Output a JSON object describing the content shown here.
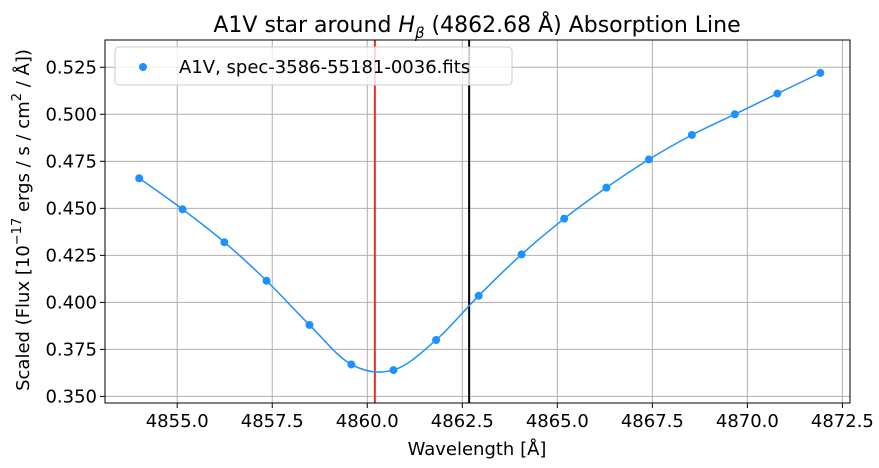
{
  "chart_data": {
    "type": "line",
    "title_text": "A1V star around ",
    "title_symbol": "H",
    "title_symbol_sub": "β",
    "title_rest": " (4862.68 Å) Absorption Line",
    "xlabel": "Wavelength [Å]",
    "ylabel_prefix": "Scaled (Flux [10",
    "ylabel_exp": "−17",
    "ylabel_mid": " ergs / s / cm",
    "ylabel_exp2": "2",
    "ylabel_suffix": " / Å])",
    "xlim": [
      4853.1,
      4872.7
    ],
    "ylim": [
      0.3465,
      0.5395
    ],
    "x_ticks": [
      4855.0,
      4857.5,
      4860.0,
      4862.5,
      4865.0,
      4867.5,
      4870.0,
      4872.5
    ],
    "x_tick_labels": [
      "4855.0",
      "4857.5",
      "4860.0",
      "4862.5",
      "4865.0",
      "4867.5",
      "4870.0",
      "4872.5"
    ],
    "y_ticks": [
      0.35,
      0.375,
      0.4,
      0.425,
      0.45,
      0.475,
      0.5,
      0.525
    ],
    "y_tick_labels": [
      "0.350",
      "0.375",
      "0.400",
      "0.425",
      "0.450",
      "0.475",
      "0.500",
      "0.525"
    ],
    "grid": true,
    "legend_position": "upper-left",
    "series": [
      {
        "name": "A1V, spec-3586-55181-0036.fits",
        "color": "#1e90ff",
        "x": [
          4854.0,
          4855.14,
          4856.24,
          4857.35,
          4858.48,
          4859.58,
          4860.69,
          4861.81,
          4862.93,
          4864.06,
          4865.18,
          4866.29,
          4867.41,
          4868.54,
          4869.67,
          4870.79,
          4871.92
        ],
        "y": [
          0.466,
          0.4495,
          0.432,
          0.4115,
          0.388,
          0.367,
          0.364,
          0.38,
          0.4035,
          0.4255,
          0.4445,
          0.461,
          0.476,
          0.489,
          0.5,
          0.511,
          0.522
        ]
      }
    ],
    "vertical_lines": [
      {
        "x": 4860.2,
        "color": "#e8312a"
      },
      {
        "x": 4862.68,
        "color": "#000000"
      }
    ]
  }
}
